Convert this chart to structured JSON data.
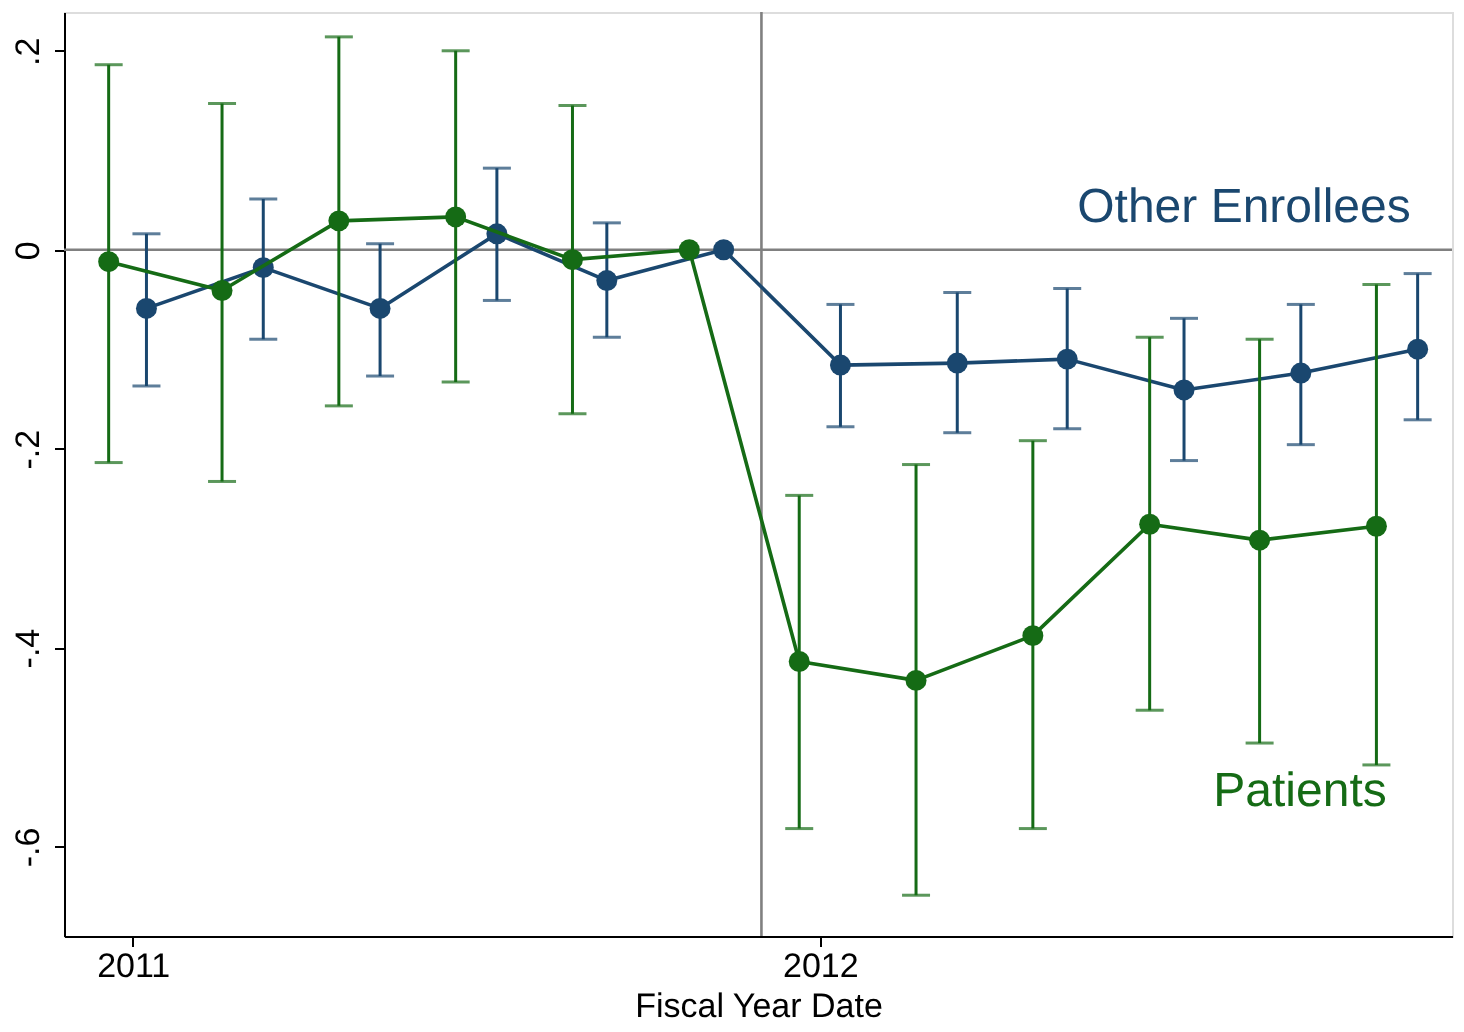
{
  "chart_data": {
    "type": "line",
    "xlabel": "Fiscal Year Date",
    "xlim": [
      2010.9,
      2012.92
    ],
    "xticks": [
      2011,
      2012
    ],
    "ylim": [
      -0.69,
      0.239
    ],
    "yticks": [
      {
        "value": 0.2,
        "label": ".2"
      },
      {
        "value": 0,
        "label": "0"
      },
      {
        "value": -0.2,
        "label": "-.2"
      },
      {
        "value": -0.4,
        "label": "-.4"
      },
      {
        "value": -0.6,
        "label": "-.6"
      }
    ],
    "grid": false,
    "legend": false,
    "marker": "circle",
    "line_style": "solid",
    "ref_lines": [
      {
        "axis": "x",
        "value": 2011.915,
        "color": "#808080"
      },
      {
        "axis": "y",
        "value": 0,
        "color": "#808080"
      }
    ],
    "series": [
      {
        "name": "Other Enrollees",
        "color": "#1a476f",
        "x": [
          2011.02,
          2011.19,
          2011.36,
          2011.53,
          2011.69,
          2011.86,
          2012.03,
          2012.2,
          2012.36,
          2012.53,
          2012.7,
          2012.87
        ],
        "values": [
          -0.059,
          -0.018,
          -0.059,
          0.016,
          -0.031,
          0,
          -0.116,
          -0.114,
          -0.11,
          -0.141,
          -0.124,
          -0.1
        ],
        "errors": [
          [
            -0.137,
            0.016
          ],
          [
            -0.09,
            0.051
          ],
          [
            -0.127,
            0.006
          ],
          [
            -0.051,
            0.082
          ],
          [
            -0.088,
            0.027
          ],
          null,
          [
            -0.178,
            -0.055
          ],
          [
            -0.184,
            -0.043
          ],
          [
            -0.18,
            -0.039
          ],
          [
            -0.212,
            -0.069
          ],
          [
            -0.196,
            -0.055
          ],
          [
            -0.171,
            -0.024
          ]
        ]
      },
      {
        "name": "Patients",
        "color": "#156b15",
        "x": [
          2010.965,
          2011.13,
          2011.3,
          2011.47,
          2011.64,
          2011.81,
          2011.97,
          2012.14,
          2012.31,
          2012.48,
          2012.64,
          2012.81
        ],
        "values": [
          -0.012,
          -0.041,
          0.029,
          0.033,
          -0.01,
          0,
          -0.414,
          -0.433,
          -0.388,
          -0.276,
          -0.292,
          -0.278
        ],
        "errors": [
          [
            -0.214,
            0.186
          ],
          [
            -0.233,
            0.147
          ],
          [
            -0.157,
            0.214
          ],
          [
            -0.133,
            0.2
          ],
          [
            -0.165,
            0.145
          ],
          null,
          [
            -0.582,
            -0.247
          ],
          [
            -0.649,
            -0.216
          ],
          [
            -0.582,
            -0.192
          ],
          [
            -0.463,
            -0.088
          ],
          [
            -0.496,
            -0.09
          ],
          [
            -0.518,
            -0.035
          ]
        ]
      }
    ]
  }
}
